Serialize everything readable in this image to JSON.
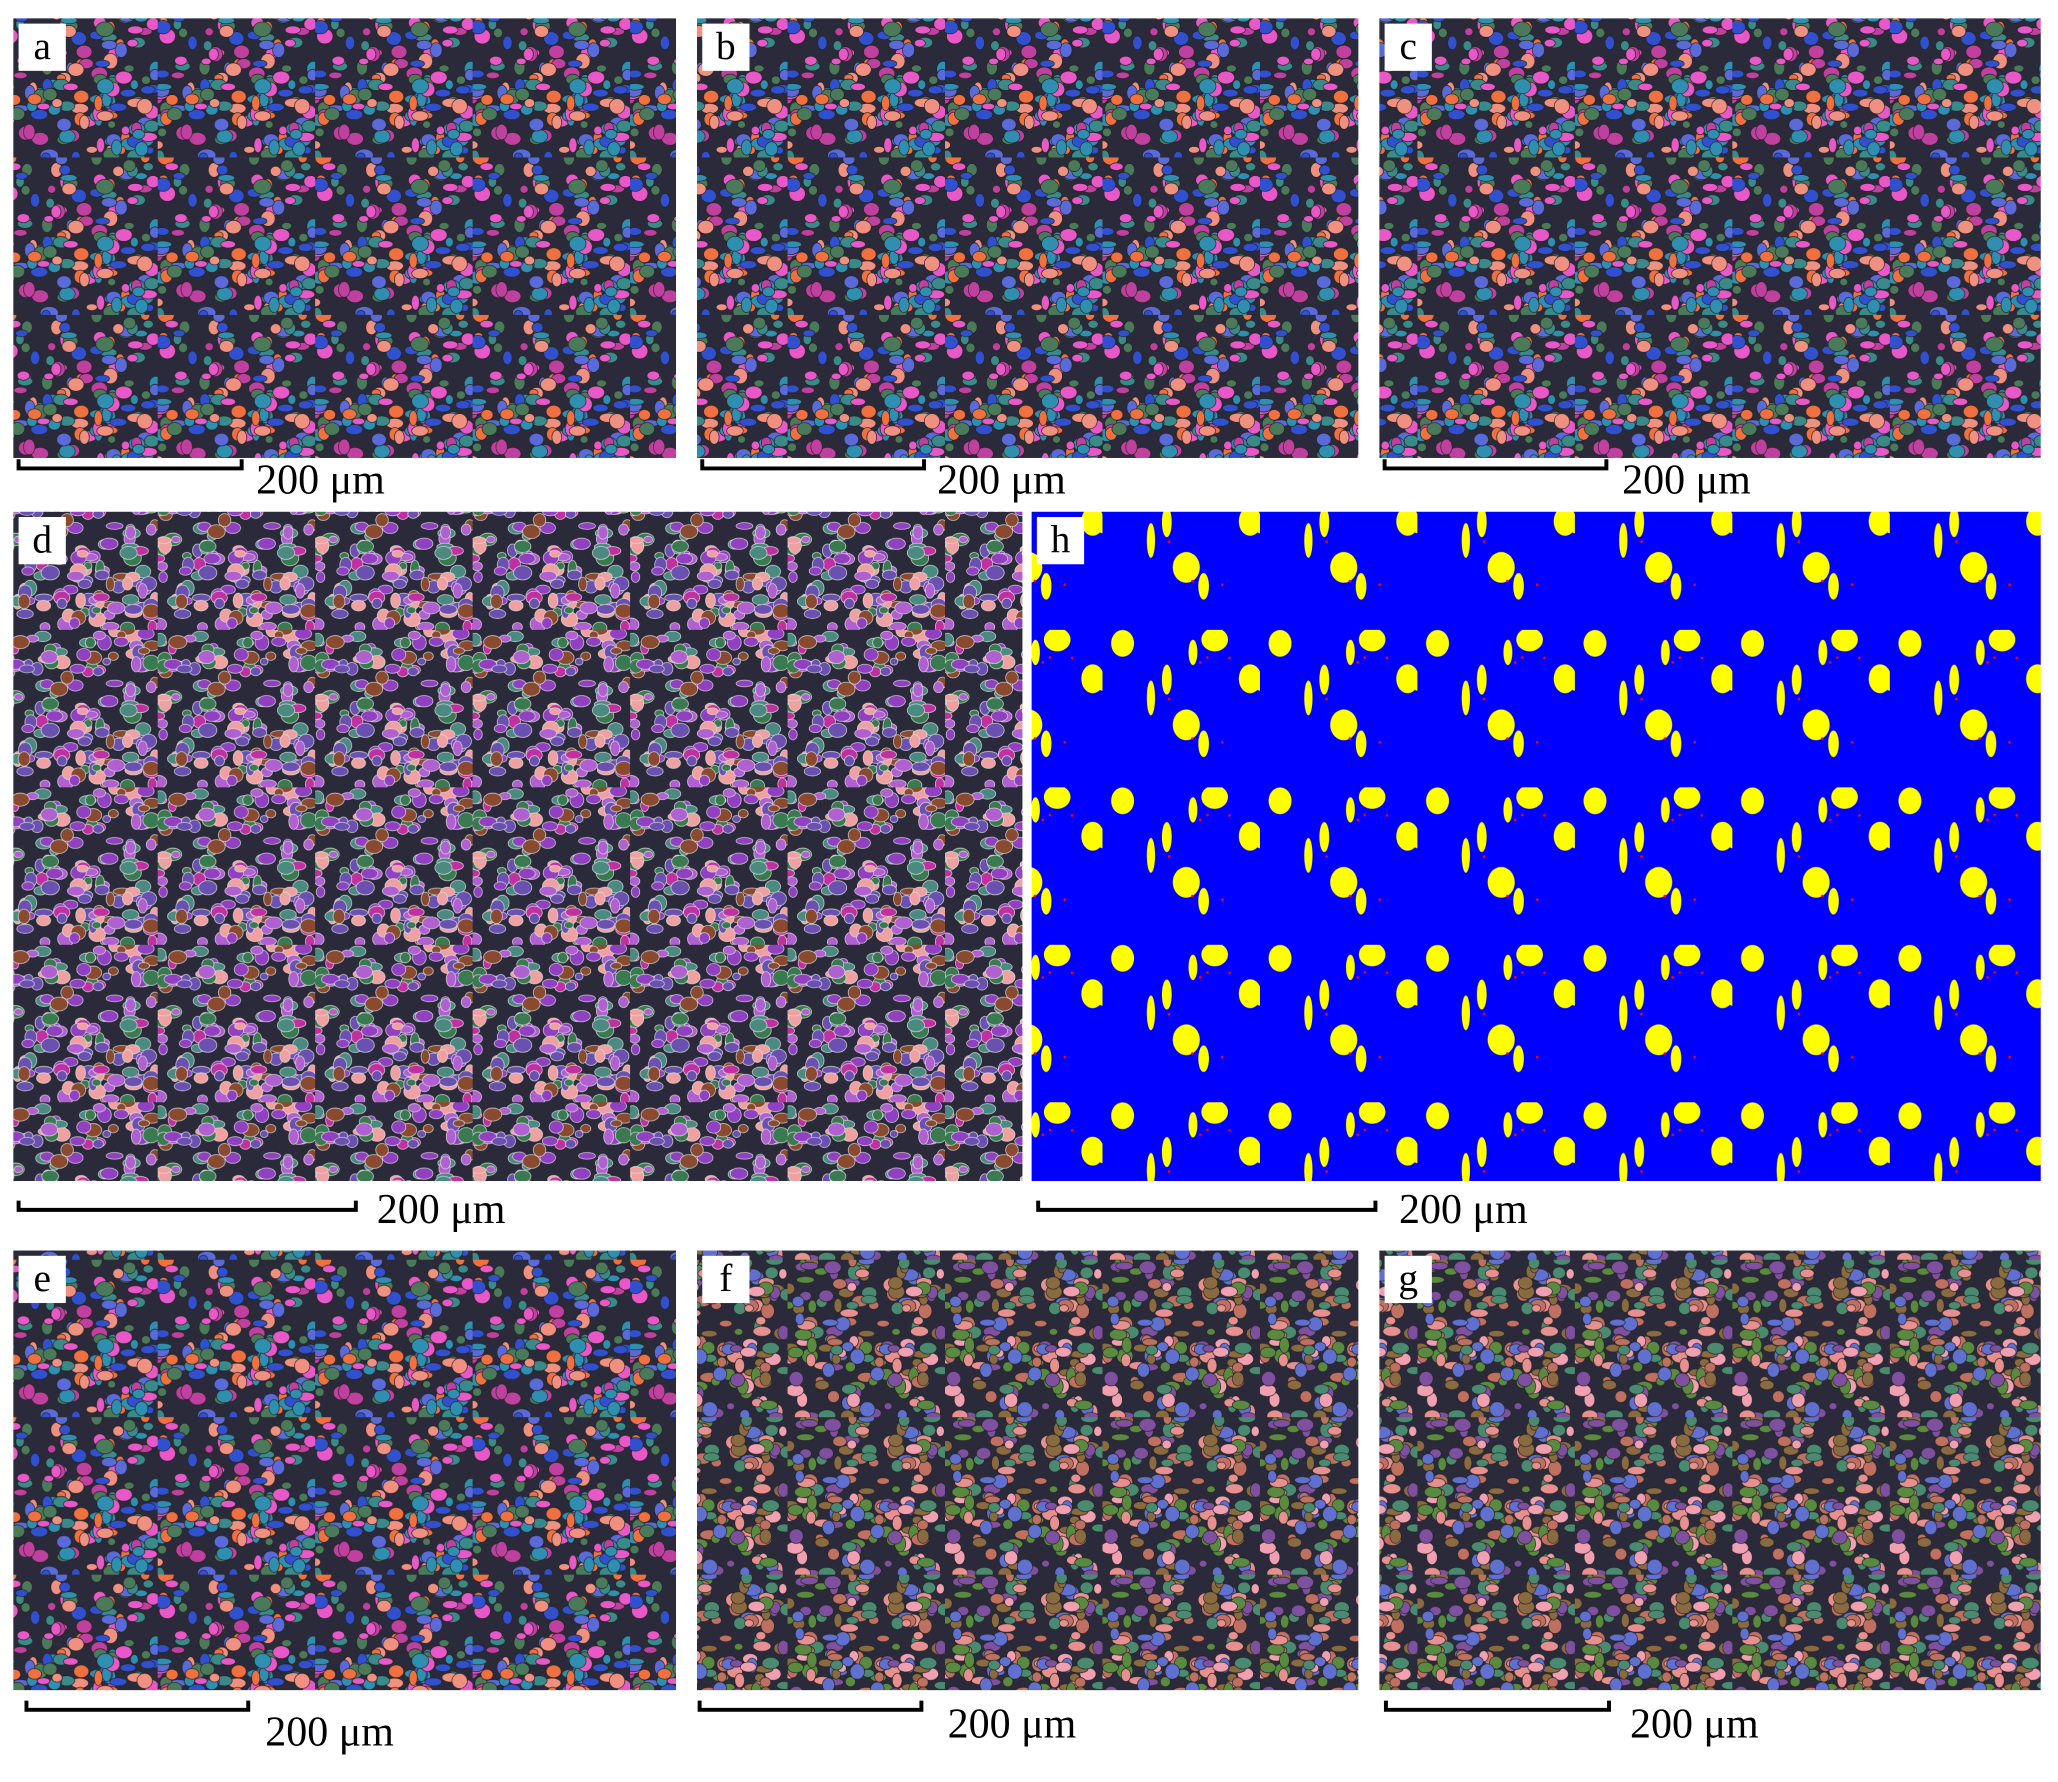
{
  "panels": [
    {
      "label": "a",
      "scale_bar": "200 μm"
    },
    {
      "label": "b",
      "scale_bar": "200 μm"
    },
    {
      "label": "c",
      "scale_bar": "200 μm"
    },
    {
      "label": "d",
      "scale_bar": "200 μm"
    },
    {
      "label": "h",
      "scale_bar": "200 μm"
    },
    {
      "label": "e",
      "scale_bar": "200 μm"
    },
    {
      "label": "f",
      "scale_bar": "200 μm"
    },
    {
      "label": "g",
      "scale_bar": "200 μm"
    }
  ]
}
